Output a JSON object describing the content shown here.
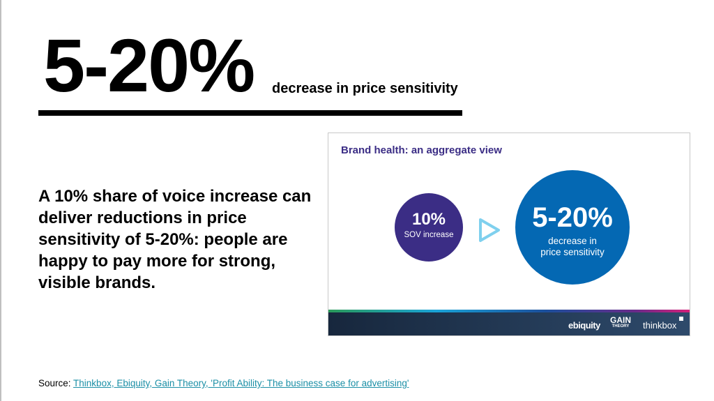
{
  "headline": {
    "value": "5-20%",
    "caption": "decrease in price sensitivity"
  },
  "body_text": "A 10% share of voice increase can deliver reductions in price sensitivity of 5-20%: people are happy to pay more for strong, visible brands.",
  "card": {
    "title": "Brand health: an aggregate view",
    "input": {
      "value": "10%",
      "label": "SOV increase"
    },
    "output": {
      "value": "5-20%",
      "label_line1": "decrease in",
      "label_line2": "price sensitivity"
    },
    "logos": {
      "ebiquity": "ebiquity",
      "gain": "GAIN",
      "gain_sub": "THEORY",
      "thinkbox": "thinkbox"
    }
  },
  "source": {
    "prefix": "Source: ",
    "link": "Thinkbox, Ebiquity, Gain Theory, 'Profit Ability: The business case for advertising'"
  },
  "colors": {
    "purple": "#3b2d85",
    "blue": "#0468b3",
    "link": "#1b8fa6"
  }
}
